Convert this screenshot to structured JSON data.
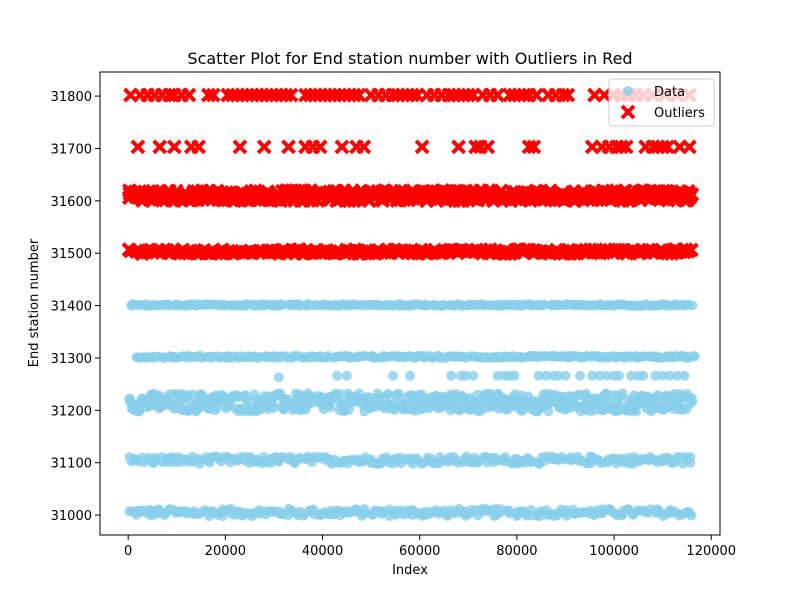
{
  "chart_data": {
    "type": "scatter",
    "title": "Scatter Plot for End station number with Outliers in Red",
    "xlabel": "Index",
    "ylabel": "End station number",
    "xlim": [
      -5800,
      121800
    ],
    "ylim": [
      30962,
      31846
    ],
    "xticks": [
      0,
      20000,
      40000,
      60000,
      80000,
      100000,
      120000
    ],
    "yticks": [
      31000,
      31100,
      31200,
      31300,
      31400,
      31500,
      31600,
      31700,
      31800
    ],
    "grid": false,
    "legend_position": "top-right",
    "series": [
      {
        "name": "Data",
        "color": "#87CEEB",
        "marker": "circle",
        "bands": [
          {
            "y": 31005,
            "x_start": 0,
            "x_end": 116000,
            "spread": 14
          },
          {
            "y": 31105,
            "x_start": 0,
            "x_end": 116000,
            "spread": 14
          },
          {
            "y": 31215,
            "x_start": 0,
            "x_end": 116000,
            "spread": 35
          },
          {
            "y": 31302,
            "x_start": 1500,
            "x_end": 116000,
            "spread": 4
          },
          {
            "y": 31401,
            "x_start": 0,
            "x_end": 116000,
            "spread": 3
          }
        ],
        "points": [
          [
            31000,
            31263
          ],
          [
            43000,
            31266
          ],
          [
            45000,
            31266
          ],
          [
            54500,
            31266
          ],
          [
            58000,
            31266
          ],
          [
            66500,
            31266
          ],
          [
            68500,
            31266
          ],
          [
            69500,
            31266
          ],
          [
            71000,
            31266
          ],
          [
            76000,
            31266
          ],
          [
            77500,
            31266
          ],
          [
            78500,
            31266
          ],
          [
            79500,
            31266
          ],
          [
            84500,
            31266
          ],
          [
            86000,
            31266
          ],
          [
            87500,
            31266
          ],
          [
            88500,
            31266
          ],
          [
            90000,
            31266
          ],
          [
            93000,
            31266
          ],
          [
            95500,
            31266
          ],
          [
            97000,
            31266
          ],
          [
            98500,
            31266
          ],
          [
            100000,
            31266
          ],
          [
            101000,
            31266
          ],
          [
            103500,
            31266
          ],
          [
            105000,
            31266
          ],
          [
            106000,
            31266
          ],
          [
            108500,
            31266
          ],
          [
            110000,
            31266
          ],
          [
            111500,
            31266
          ],
          [
            113000,
            31266
          ],
          [
            114500,
            31266
          ]
        ]
      },
      {
        "name": "Outliers",
        "color": "#FF0000",
        "marker": "x",
        "bands": [
          {
            "y": 31503,
            "x_start": 0,
            "x_end": 116000,
            "spread": 8
          },
          {
            "y": 31610,
            "x_start": 0,
            "x_end": 116000,
            "spread": 20
          }
        ],
        "points": [
          [
            2000,
            31703
          ],
          [
            6500,
            31703
          ],
          [
            9500,
            31703
          ],
          [
            13000,
            31703
          ],
          [
            14500,
            31703
          ],
          [
            23000,
            31703
          ],
          [
            28000,
            31703
          ],
          [
            33000,
            31703
          ],
          [
            36500,
            31703
          ],
          [
            38000,
            31703
          ],
          [
            39500,
            31703
          ],
          [
            44000,
            31703
          ],
          [
            47000,
            31703
          ],
          [
            48500,
            31703
          ],
          [
            60500,
            31703
          ],
          [
            68000,
            31703
          ],
          [
            71500,
            31703
          ],
          [
            72500,
            31703
          ],
          [
            74000,
            31703
          ],
          [
            82500,
            31703
          ],
          [
            83500,
            31703
          ],
          [
            95500,
            31703
          ],
          [
            97500,
            31703
          ],
          [
            99000,
            31703
          ],
          [
            100500,
            31703
          ],
          [
            101500,
            31703
          ],
          [
            102500,
            31703
          ],
          [
            106500,
            31703
          ],
          [
            108000,
            31703
          ],
          [
            109000,
            31703
          ],
          [
            110000,
            31703
          ],
          [
            111000,
            31703
          ],
          [
            113500,
            31703
          ],
          [
            115500,
            31703
          ],
          [
            500,
            31802
          ],
          [
            2500,
            31802
          ],
          [
            4000,
            31802
          ],
          [
            5500,
            31802
          ],
          [
            7000,
            31802
          ],
          [
            8500,
            31802
          ],
          [
            9500,
            31802
          ],
          [
            11000,
            31802
          ],
          [
            12500,
            31802
          ],
          [
            16500,
            31802
          ],
          [
            17500,
            31802
          ],
          [
            20500,
            31802
          ],
          [
            21500,
            31802
          ],
          [
            22500,
            31802
          ],
          [
            23500,
            31802
          ],
          [
            24500,
            31802
          ],
          [
            25500,
            31802
          ],
          [
            26500,
            31802
          ],
          [
            27500,
            31802
          ],
          [
            28500,
            31802
          ],
          [
            29500,
            31802
          ],
          [
            30500,
            31802
          ],
          [
            31500,
            31802
          ],
          [
            32500,
            31802
          ],
          [
            33500,
            31802
          ],
          [
            36500,
            31802
          ],
          [
            37500,
            31802
          ],
          [
            38500,
            31802
          ],
          [
            39500,
            31802
          ],
          [
            40500,
            31802
          ],
          [
            41500,
            31802
          ],
          [
            42500,
            31802
          ],
          [
            43500,
            31802
          ],
          [
            44500,
            31802
          ],
          [
            45500,
            31802
          ],
          [
            46500,
            31802
          ],
          [
            47500,
            31802
          ],
          [
            50000,
            31802
          ],
          [
            51500,
            31802
          ],
          [
            53000,
            31802
          ],
          [
            54500,
            31802
          ],
          [
            55500,
            31802
          ],
          [
            56500,
            31802
          ],
          [
            57500,
            31802
          ],
          [
            58500,
            31802
          ],
          [
            59500,
            31802
          ],
          [
            61500,
            31802
          ],
          [
            63000,
            31802
          ],
          [
            64500,
            31802
          ],
          [
            66000,
            31802
          ],
          [
            67000,
            31802
          ],
          [
            68000,
            31802
          ],
          [
            69000,
            31802
          ],
          [
            70000,
            31802
          ],
          [
            71000,
            31802
          ],
          [
            73000,
            31802
          ],
          [
            74500,
            31802
          ],
          [
            76000,
            31802
          ],
          [
            78500,
            31802
          ],
          [
            79500,
            31802
          ],
          [
            80500,
            31802
          ],
          [
            81500,
            31802
          ],
          [
            82500,
            31802
          ],
          [
            84000,
            31802
          ],
          [
            86500,
            31802
          ],
          [
            88000,
            31802
          ],
          [
            89500,
            31802
          ],
          [
            90500,
            31802
          ],
          [
            96000,
            31802
          ],
          [
            98000,
            31802
          ],
          [
            100000,
            31802
          ],
          [
            101500,
            31802
          ],
          [
            103000,
            31802
          ],
          [
            104500,
            31802
          ],
          [
            106000,
            31802
          ],
          [
            108000,
            31802
          ],
          [
            110500,
            31802
          ],
          [
            113000,
            31802
          ],
          [
            115500,
            31802
          ]
        ]
      }
    ]
  }
}
